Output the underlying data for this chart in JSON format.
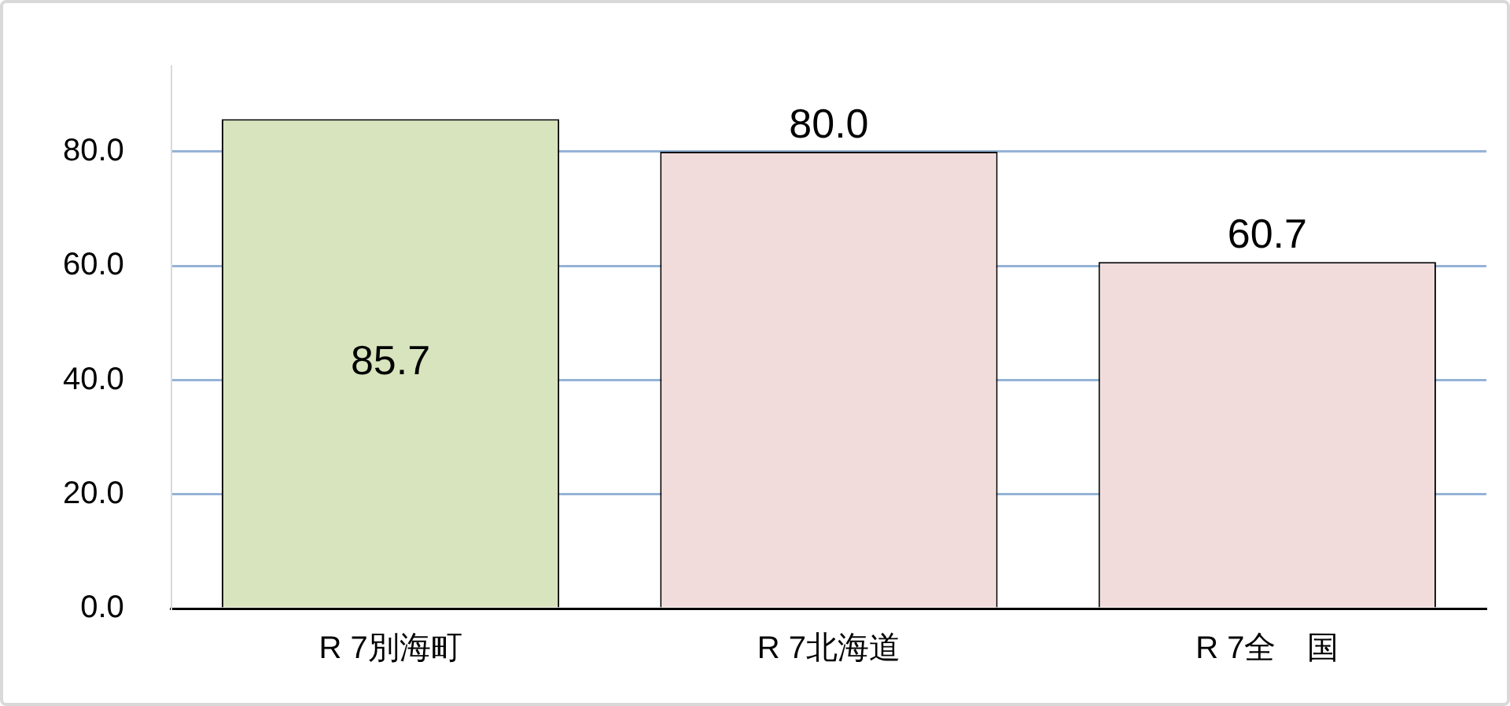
{
  "chart_data": {
    "type": "bar",
    "categories": [
      "R 7別海町",
      "R 7北海道",
      "R 7全　国"
    ],
    "values": [
      85.7,
      80.0,
      60.7
    ],
    "colors": [
      "#d7e4bd",
      "#f2dcdb",
      "#f2dcdb"
    ],
    "ylim": [
      0,
      95
    ],
    "yticks": [
      {
        "value": 0,
        "label": "0.0"
      },
      {
        "value": 20,
        "label": "20.0"
      },
      {
        "value": 40,
        "label": "40.0"
      },
      {
        "value": 60,
        "label": "60.0"
      },
      {
        "value": 80,
        "label": "80.0"
      }
    ],
    "grid": "y",
    "legend": false,
    "value_labels": [
      "85.7",
      "80.0",
      "60.7"
    ]
  }
}
